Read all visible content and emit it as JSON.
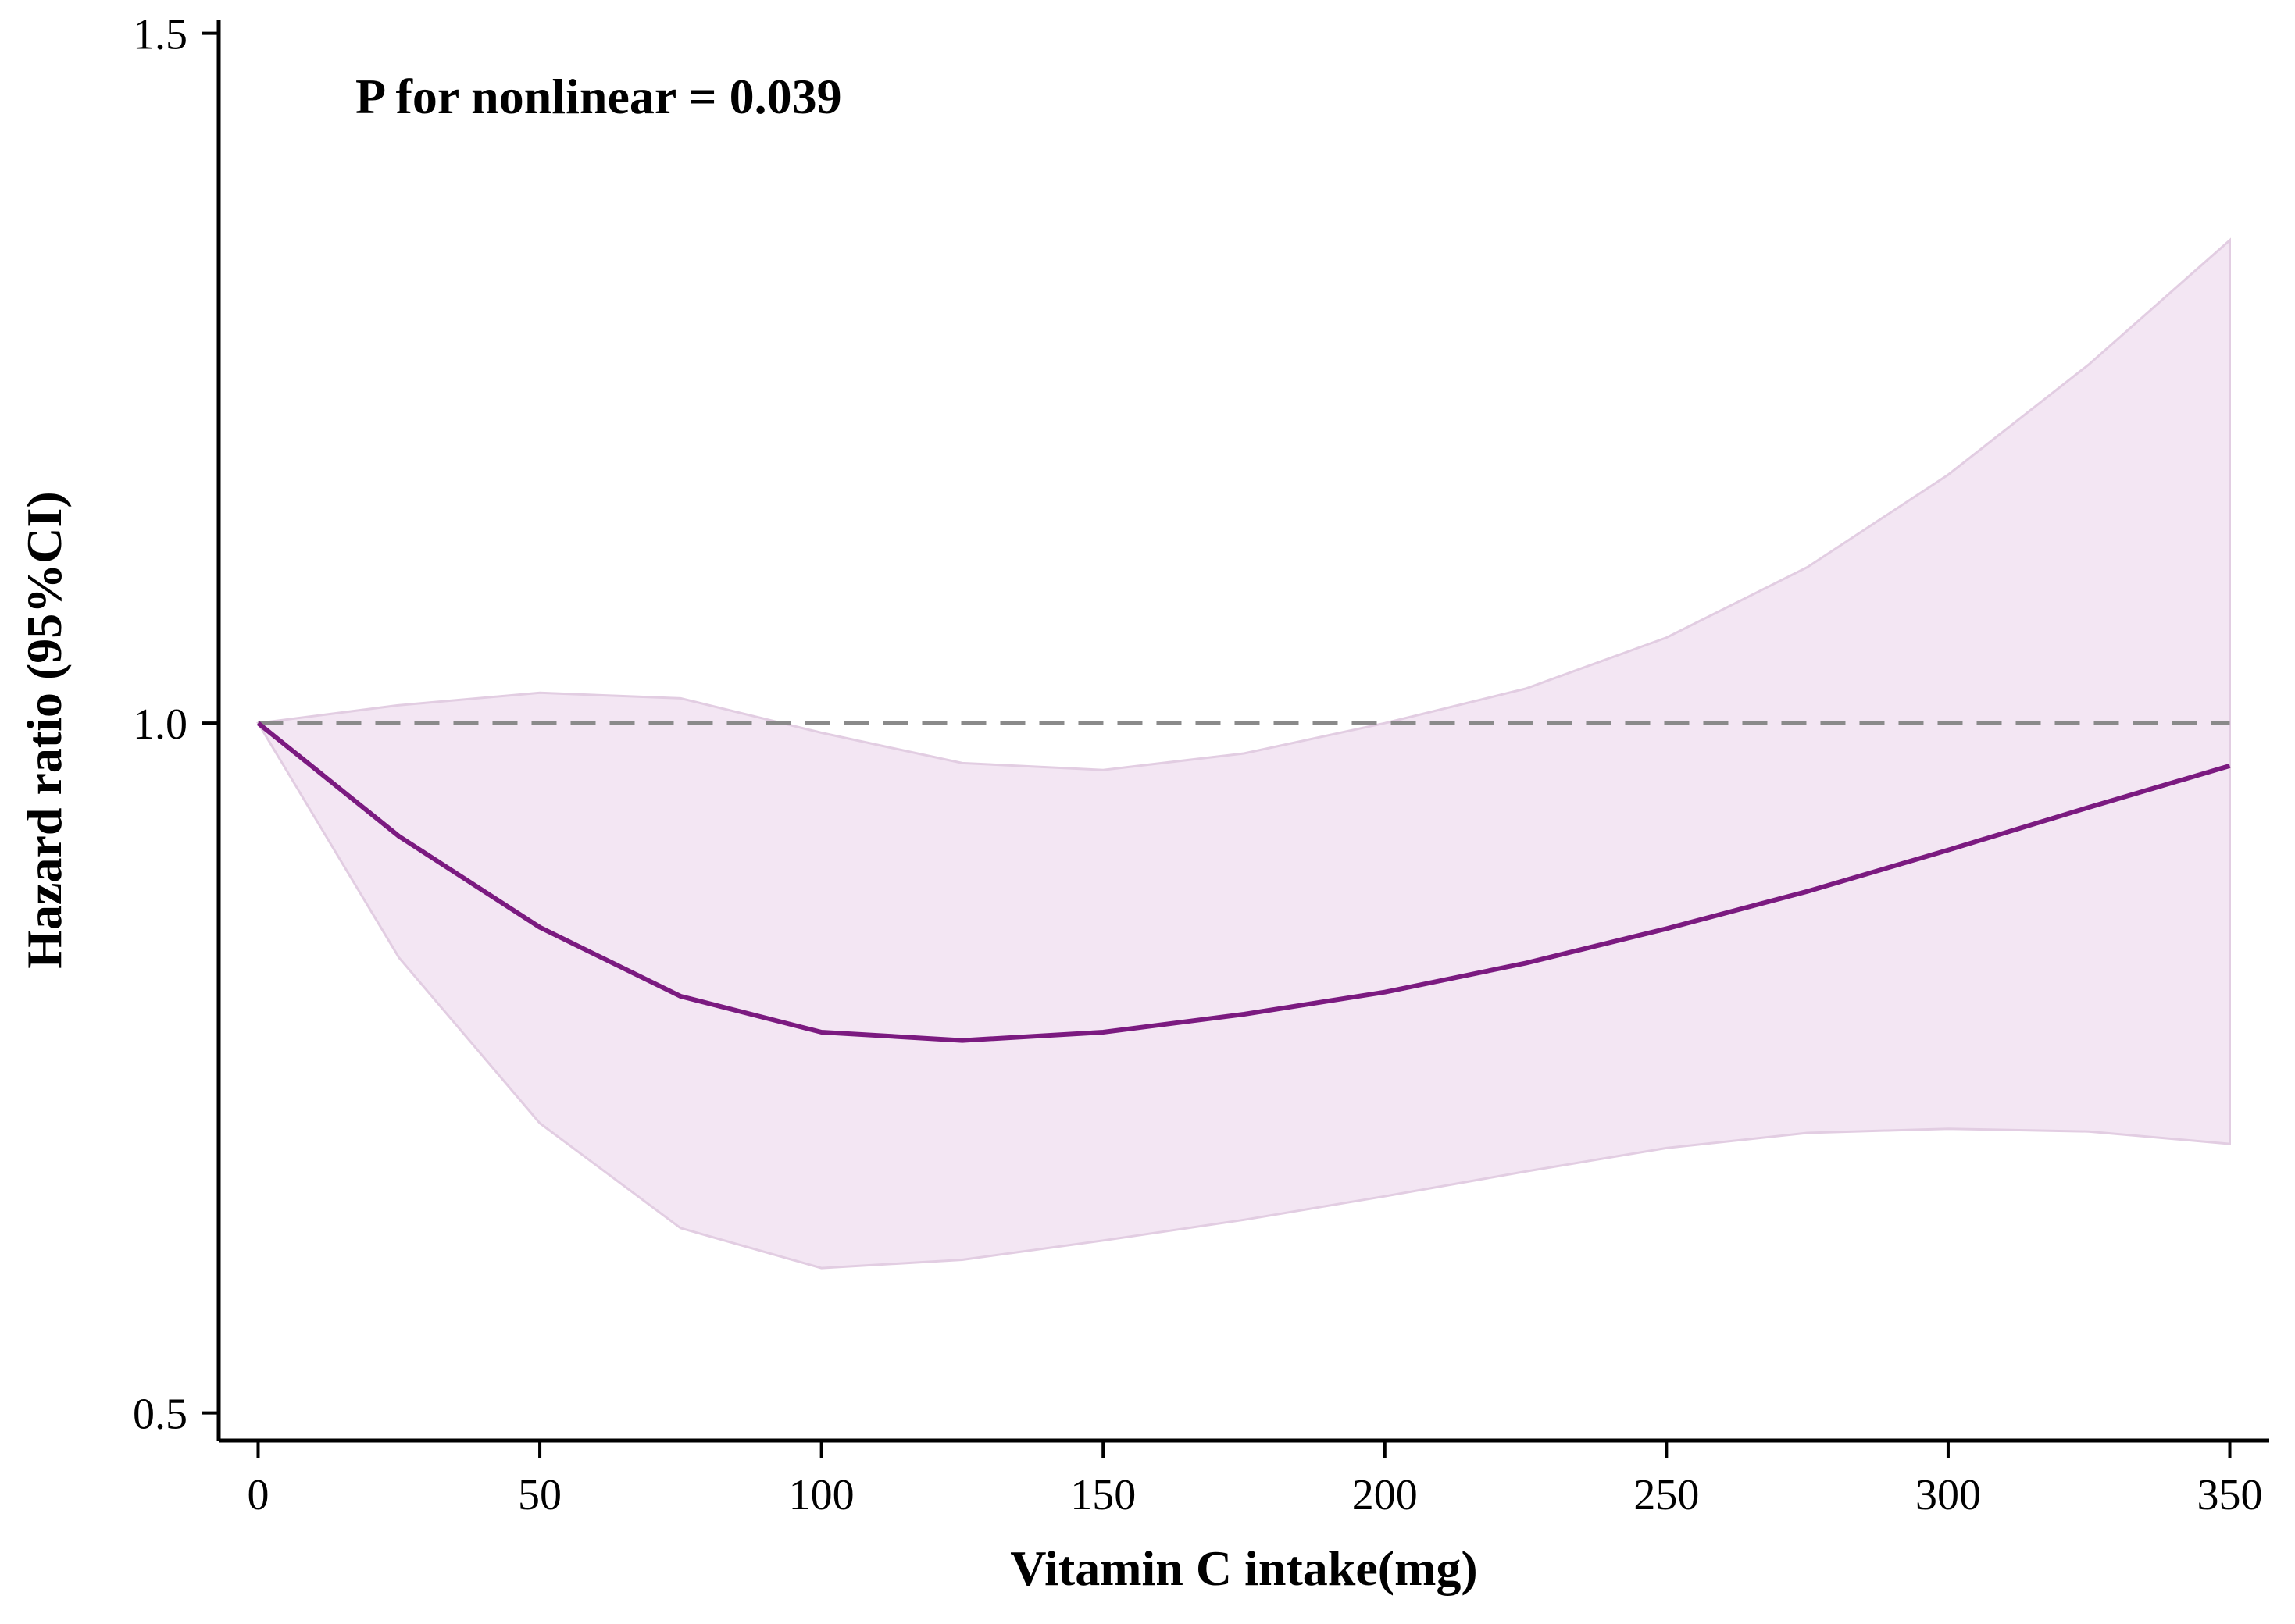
{
  "chart_data": {
    "type": "line",
    "title": "",
    "xlabel": "Vitamin C intake(mg)",
    "ylabel": "Hazard ratio (95%CI)",
    "annotation": "P for nonlinear = 0.039",
    "xlim": [
      -7,
      357
    ],
    "ylim": [
      0.48,
      1.51
    ],
    "x_ticks": [
      0,
      50,
      100,
      150,
      200,
      250,
      300,
      350
    ],
    "y_ticks": [
      0.5,
      1.0,
      1.5
    ],
    "y_tick_labels": [
      "0.5",
      "1.0",
      "1.5"
    ],
    "reference_line": {
      "y": 1.0,
      "style": "dashed",
      "color": "#8a8a8a"
    },
    "series": [
      {
        "x": [
          0,
          25,
          50,
          75,
          100,
          125,
          150,
          175,
          200,
          225,
          250,
          275,
          300,
          325,
          350
        ],
        "values": [
          1.0,
          0.918,
          0.852,
          0.802,
          0.776,
          0.77,
          0.776,
          0.789,
          0.805,
          0.826,
          0.851,
          0.878,
          0.908,
          0.939,
          0.969
        ],
        "color": "#7b1a80"
      }
    ],
    "confidence_band": {
      "x": [
        0,
        25,
        50,
        75,
        100,
        125,
        150,
        175,
        200,
        225,
        250,
        275,
        300,
        325,
        350
      ],
      "lower": [
        1.0,
        0.83,
        0.71,
        0.634,
        0.605,
        0.611,
        0.625,
        0.64,
        0.657,
        0.675,
        0.692,
        0.703,
        0.706,
        0.704,
        0.695
      ],
      "upper": [
        1.0,
        1.013,
        1.022,
        1.018,
        0.993,
        0.971,
        0.966,
        0.978,
        1.0,
        1.025,
        1.062,
        1.113,
        1.18,
        1.26,
        1.35
      ],
      "color": "#f3e6f3",
      "edge_color": "#e2cde2"
    }
  }
}
